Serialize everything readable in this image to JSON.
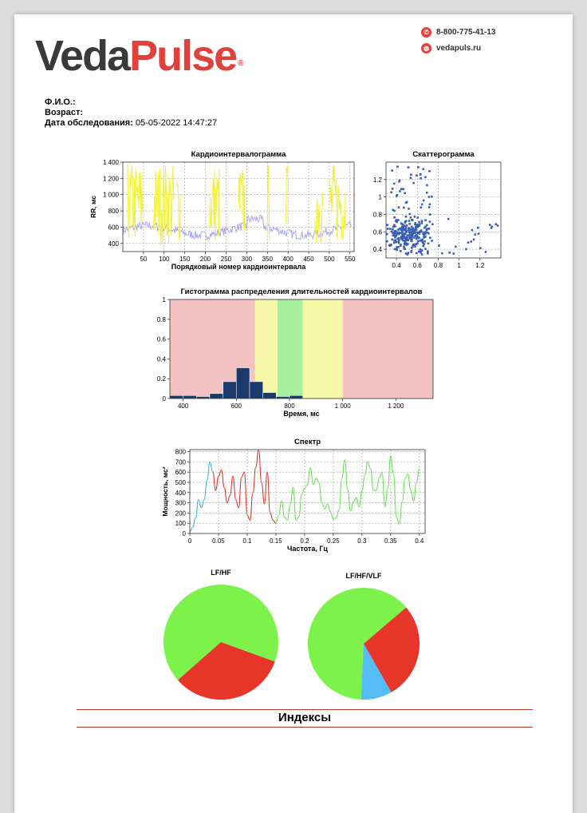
{
  "header": {
    "logo_part1": "Veda",
    "logo_part2": "Pulse",
    "logo_mark": "®",
    "phone": "8-800-775-41-13",
    "website": "vedapuls.ru",
    "phone_icon": "phone-icon",
    "web_icon": "globe-icon"
  },
  "patient": {
    "name_label": "Ф.И.О.:",
    "name_value": "",
    "age_label": "Возраст:",
    "age_value": "",
    "date_label": "Дата обследования:",
    "date_value": "05-05-2022 14:47:27"
  },
  "indexes_title": "Индексы",
  "chart_data": [
    {
      "type": "line",
      "title": "Кардиоинтервалограмма",
      "xlabel": "Порядковый номер кардиоинтервала",
      "ylabel": "RR, мс",
      "xlim": [
        0,
        560
      ],
      "ylim": [
        300,
        1400
      ],
      "xticks": [
        "50",
        "100",
        "150",
        "200",
        "250",
        "300",
        "350",
        "400",
        "450",
        "500",
        "550"
      ],
      "yticks": [
        "400",
        "600",
        "800",
        "1 000",
        "1 200",
        "1 400"
      ],
      "grid": true,
      "colors": {
        "rr": "#a9a9f0",
        "artifact": "#f2f23a"
      }
    },
    {
      "type": "scatter",
      "title": "Скаттерограмма",
      "xlim": [
        0.3,
        1.4
      ],
      "ylim": [
        0.3,
        1.4
      ],
      "xticks": [
        "0.4",
        "0.6",
        "0.8",
        "1",
        "1.2"
      ],
      "yticks": [
        "0.4",
        "0.6",
        "0.8",
        "1",
        "1.2"
      ],
      "grid": true,
      "color": "#3a5fb0"
    },
    {
      "type": "bar",
      "title": "Гистограмма распределения длительностей кардиоинтервалов",
      "xlabel": "Время, мс",
      "xlim": [
        350,
        1340
      ],
      "ylim": [
        0,
        1
      ],
      "xticks": [
        "400",
        "600",
        "800",
        "1 000",
        "1 200"
      ],
      "yticks": [
        "0",
        "0.2",
        "0.4",
        "0.6",
        "0.8",
        "1"
      ],
      "bins": [
        {
          "x0": 350,
          "x1": 400,
          "value": 0.03
        },
        {
          "x0": 400,
          "x1": 450,
          "value": 0.03
        },
        {
          "x0": 450,
          "x1": 500,
          "value": 0.02
        },
        {
          "x0": 500,
          "x1": 550,
          "value": 0.05
        },
        {
          "x0": 550,
          "x1": 600,
          "value": 0.17
        },
        {
          "x0": 600,
          "x1": 650,
          "value": 0.31
        },
        {
          "x0": 650,
          "x1": 700,
          "value": 0.17
        },
        {
          "x0": 700,
          "x1": 750,
          "value": 0.06
        },
        {
          "x0": 750,
          "x1": 800,
          "value": 0.02
        },
        {
          "x0": 800,
          "x1": 850,
          "value": 0.03
        }
      ],
      "zones": [
        {
          "x0": 350,
          "x1": 670,
          "color": "#f4c2c2"
        },
        {
          "x0": 670,
          "x1": 755,
          "color": "#f7f7a8"
        },
        {
          "x0": 755,
          "x1": 850,
          "color": "#a8f0a0"
        },
        {
          "x0": 850,
          "x1": 1000,
          "color": "#f7f7a8"
        },
        {
          "x0": 1000,
          "x1": 1340,
          "color": "#f4c2c2"
        }
      ],
      "bar_color": "#1a3a6b"
    },
    {
      "type": "line",
      "title": "Спектр",
      "xlabel": "Частота, Гц",
      "ylabel": "Мощность, мс²",
      "xlim": [
        0,
        0.41
      ],
      "ylim": [
        0,
        820
      ],
      "xticks": [
        "0",
        "0.05",
        "0.1",
        "0.15",
        "0.2",
        "0.25",
        "0.3",
        "0.35",
        "0.4"
      ],
      "yticks": [
        "0",
        "100",
        "200",
        "300",
        "400",
        "500",
        "600",
        "700",
        "800"
      ],
      "grid": true,
      "bands": [
        {
          "x0": 0,
          "x1": 0.04,
          "color": "#3fb3e8"
        },
        {
          "x0": 0.04,
          "x1": 0.15,
          "color": "#d63a2c"
        },
        {
          "x0": 0.15,
          "x1": 0.4,
          "color": "#6be05a"
        }
      ],
      "points": [
        [
          0,
          20
        ],
        [
          0.005,
          60
        ],
        [
          0.01,
          150
        ],
        [
          0.015,
          330
        ],
        [
          0.02,
          250
        ],
        [
          0.025,
          330
        ],
        [
          0.03,
          520
        ],
        [
          0.035,
          700
        ],
        [
          0.04,
          600
        ],
        [
          0.045,
          420
        ],
        [
          0.05,
          560
        ],
        [
          0.055,
          620
        ],
        [
          0.06,
          450
        ],
        [
          0.065,
          300
        ],
        [
          0.07,
          370
        ],
        [
          0.075,
          560
        ],
        [
          0.08,
          330
        ],
        [
          0.085,
          250
        ],
        [
          0.09,
          550
        ],
        [
          0.095,
          600
        ],
        [
          0.1,
          180
        ],
        [
          0.105,
          130
        ],
        [
          0.11,
          400
        ],
        [
          0.115,
          650
        ],
        [
          0.12,
          820
        ],
        [
          0.125,
          500
        ],
        [
          0.13,
          290
        ],
        [
          0.135,
          600
        ],
        [
          0.14,
          200
        ],
        [
          0.145,
          130
        ],
        [
          0.15,
          100
        ],
        [
          0.155,
          180
        ],
        [
          0.16,
          320
        ],
        [
          0.165,
          160
        ],
        [
          0.17,
          130
        ],
        [
          0.175,
          280
        ],
        [
          0.18,
          450
        ],
        [
          0.185,
          130
        ],
        [
          0.19,
          160
        ],
        [
          0.195,
          380
        ],
        [
          0.2,
          440
        ],
        [
          0.205,
          480
        ],
        [
          0.21,
          640
        ],
        [
          0.215,
          480
        ],
        [
          0.22,
          540
        ],
        [
          0.225,
          500
        ],
        [
          0.23,
          300
        ],
        [
          0.235,
          240
        ],
        [
          0.24,
          290
        ],
        [
          0.245,
          210
        ],
        [
          0.25,
          140
        ],
        [
          0.255,
          150
        ],
        [
          0.26,
          230
        ],
        [
          0.265,
          540
        ],
        [
          0.27,
          720
        ],
        [
          0.275,
          430
        ],
        [
          0.28,
          220
        ],
        [
          0.285,
          310
        ],
        [
          0.29,
          350
        ],
        [
          0.295,
          260
        ],
        [
          0.3,
          420
        ],
        [
          0.305,
          570
        ],
        [
          0.31,
          700
        ],
        [
          0.315,
          630
        ],
        [
          0.32,
          420
        ],
        [
          0.325,
          420
        ],
        [
          0.33,
          540
        ],
        [
          0.335,
          600
        ],
        [
          0.34,
          260
        ],
        [
          0.345,
          440
        ],
        [
          0.35,
          760
        ],
        [
          0.355,
          580
        ],
        [
          0.36,
          160
        ],
        [
          0.365,
          90
        ],
        [
          0.37,
          300
        ],
        [
          0.375,
          540
        ],
        [
          0.38,
          580
        ],
        [
          0.385,
          420
        ],
        [
          0.39,
          320
        ],
        [
          0.395,
          500
        ],
        [
          0.4,
          630
        ],
        [
          0.405,
          410
        ]
      ]
    },
    {
      "type": "pie",
      "title": "LF/HF",
      "slices": [
        {
          "value": 0.67,
          "color": "#7cf24a"
        },
        {
          "value": 0.33,
          "color": "#e8352a"
        }
      ]
    },
    {
      "type": "pie",
      "title": "LF/HF/VLF",
      "slices": [
        {
          "value": 0.63,
          "color": "#7cf24a"
        },
        {
          "value": 0.28,
          "color": "#e8352a"
        },
        {
          "value": 0.09,
          "color": "#55bdf5"
        }
      ]
    }
  ]
}
